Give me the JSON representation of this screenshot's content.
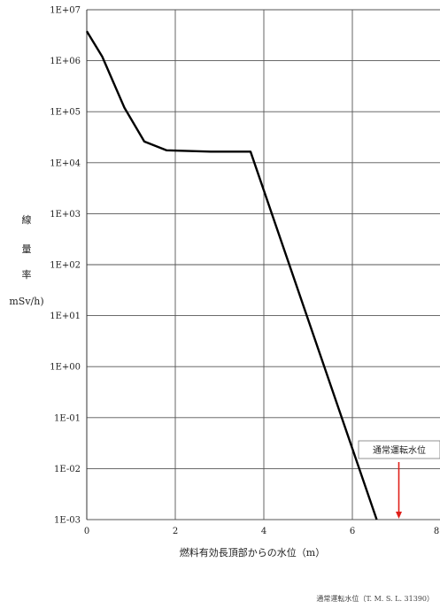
{
  "chart_data": {
    "type": "line",
    "xlabel": "燃料有効長頂部からの水位（m）",
    "ylabel_chars": [
      "線",
      "量",
      "率",
      "mSv/h)"
    ],
    "xlim": [
      0,
      8
    ],
    "ylim": [
      0.001,
      10000000.0
    ],
    "y_scale": "log",
    "grid": true,
    "x_ticks": [
      0,
      2,
      4,
      6,
      8
    ],
    "x_tick_labels": [
      "0",
      "2",
      "4",
      "6",
      "8"
    ],
    "y_ticks": [
      10000000.0,
      1000000.0,
      100000.0,
      10000.0,
      1000.0,
      100.0,
      10.0,
      1.0,
      0.1,
      0.01,
      0.001
    ],
    "y_tick_labels": [
      "1E+07",
      "1E+06",
      "1E+05",
      "1E+04",
      "1E+03",
      "1E+02",
      "1E+01",
      "1E+00",
      "1E-01",
      "1E-02",
      "1E-03"
    ],
    "series": [
      {
        "color": "#000000",
        "x": [
          0.0,
          0.35,
          0.85,
          1.3,
          1.8,
          2.8,
          3.7,
          6.55
        ],
        "y": [
          3800000,
          1200000,
          120000,
          26000,
          17500,
          16500,
          16500,
          0.001
        ]
      }
    ],
    "annotations": [
      {
        "text": "通常運転水位",
        "x": 7.05,
        "arrow_color": "#e0201a"
      }
    ],
    "footnote": "通常運転水位（T. M. S. L. 31390）"
  }
}
